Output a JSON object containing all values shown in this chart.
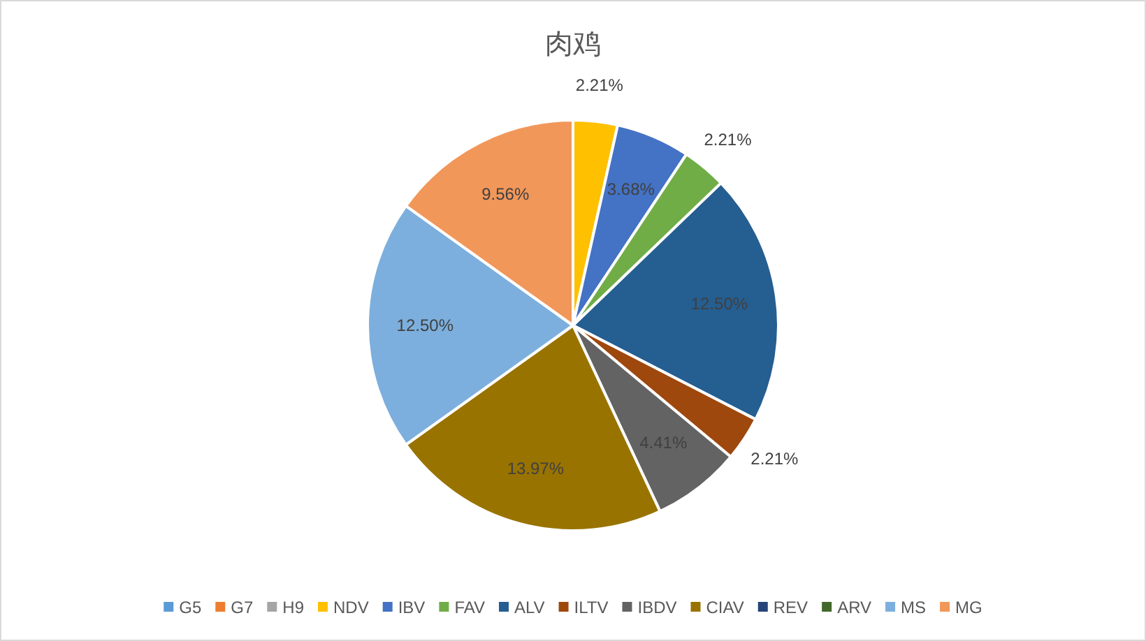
{
  "chart_data": {
    "type": "pie",
    "title": "肉鸡",
    "categories": [
      "G5",
      "G7",
      "H9",
      "NDV",
      "IBV",
      "FAV",
      "ALV",
      "ILTV",
      "IBDV",
      "CIAV",
      "REV",
      "ARV",
      "MS",
      "MG"
    ],
    "values": [
      0,
      0,
      0,
      2.21,
      3.68,
      2.21,
      12.5,
      2.21,
      4.41,
      13.97,
      0,
      0,
      12.5,
      9.56
    ],
    "colors": [
      "#5b9bd5",
      "#ed7d31",
      "#a5a5a5",
      "#ffc000",
      "#4472c4",
      "#70ad47",
      "#255e91",
      "#9e480e",
      "#636363",
      "#997300",
      "#264478",
      "#43682b",
      "#7cafdd",
      "#f1975a"
    ],
    "value_labels": [
      null,
      null,
      null,
      "2.21%",
      "3.68%",
      "2.21%",
      "12.50%",
      "2.21%",
      "4.41%",
      "13.97%",
      null,
      null,
      "12.50%",
      "9.56%"
    ],
    "legend": "bottom"
  }
}
